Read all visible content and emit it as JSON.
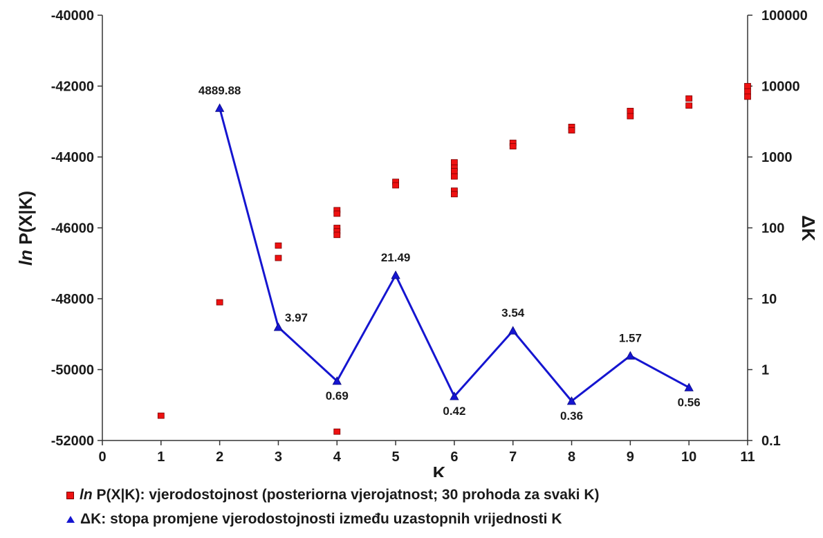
{
  "chart_data": {
    "type": "scatter",
    "xlabel": "K",
    "ylabel_italic": "ln",
    "ylabel_rest": " P(X|K)",
    "y2label": "ΔK",
    "xlim": [
      0,
      11
    ],
    "ylim": [
      -52000,
      -40000
    ],
    "y2lim": [
      0.1,
      100000
    ],
    "y2scale": "log",
    "x_ticks": [
      "0",
      "1",
      "2",
      "3",
      "4",
      "5",
      "6",
      "7",
      "8",
      "9",
      "10",
      "11"
    ],
    "y_ticks": [
      "-40000",
      "-42000",
      "-44000",
      "-46000",
      "-48000",
      "-50000",
      "-52000"
    ],
    "y2_ticks": [
      "100000",
      "10000",
      "1000",
      "100",
      "10",
      "1",
      "0.1"
    ],
    "grid": false,
    "series": [
      {
        "name": "ln P(X|K): vjerodostojnost (posteriorna vjerojatnost; 30 prohoda za svaki K)",
        "type": "scatter",
        "axis": "left",
        "color": "#ee1111",
        "points": [
          [
            1,
            -51300
          ],
          [
            2,
            -48100
          ],
          [
            3,
            -46500
          ],
          [
            3,
            -46850
          ],
          [
            4,
            -45500
          ],
          [
            4,
            -45600
          ],
          [
            4,
            -46000
          ],
          [
            4,
            -46100
          ],
          [
            4,
            -46200
          ],
          [
            4,
            -51750
          ],
          [
            5,
            -44700
          ],
          [
            5,
            -44800
          ],
          [
            6,
            -44150
          ],
          [
            6,
            -44300
          ],
          [
            6,
            -44400
          ],
          [
            6,
            -44550
          ],
          [
            6,
            -44950
          ],
          [
            6,
            -45050
          ],
          [
            7,
            -43600
          ],
          [
            7,
            -43700
          ],
          [
            8,
            -43150
          ],
          [
            8,
            -43250
          ],
          [
            9,
            -42700
          ],
          [
            9,
            -42850
          ],
          [
            10,
            -42350
          ],
          [
            10,
            -42550
          ],
          [
            11,
            -42000
          ],
          [
            11,
            -42150
          ],
          [
            11,
            -42300
          ]
        ]
      },
      {
        "name": "ΔK: stopa promjene vjerodostojnosti između uzastopnih vrijednosti K",
        "type": "line",
        "axis": "right",
        "color": "#1515d0",
        "x": [
          2,
          3,
          4,
          5,
          6,
          7,
          8,
          9,
          10
        ],
        "values": [
          4889.88,
          3.97,
          0.69,
          21.49,
          0.42,
          3.54,
          0.36,
          1.57,
          0.56
        ],
        "labels": [
          "4889.88",
          "3.97",
          "0.69",
          "21.49",
          "0.42",
          "3.54",
          "0.36",
          "1.57",
          "0.56"
        ]
      }
    ],
    "legend_position": "bottom-left"
  },
  "legend": {
    "item1_italic": "ln",
    "item1_rest": " P(X|K): vjerodostojnost (posteriorna vjerojatnost; 30 prohoda za svaki K)",
    "item2": "ΔK: stopa promjene vjerodostojnosti između uzastopnih vrijednosti K"
  }
}
